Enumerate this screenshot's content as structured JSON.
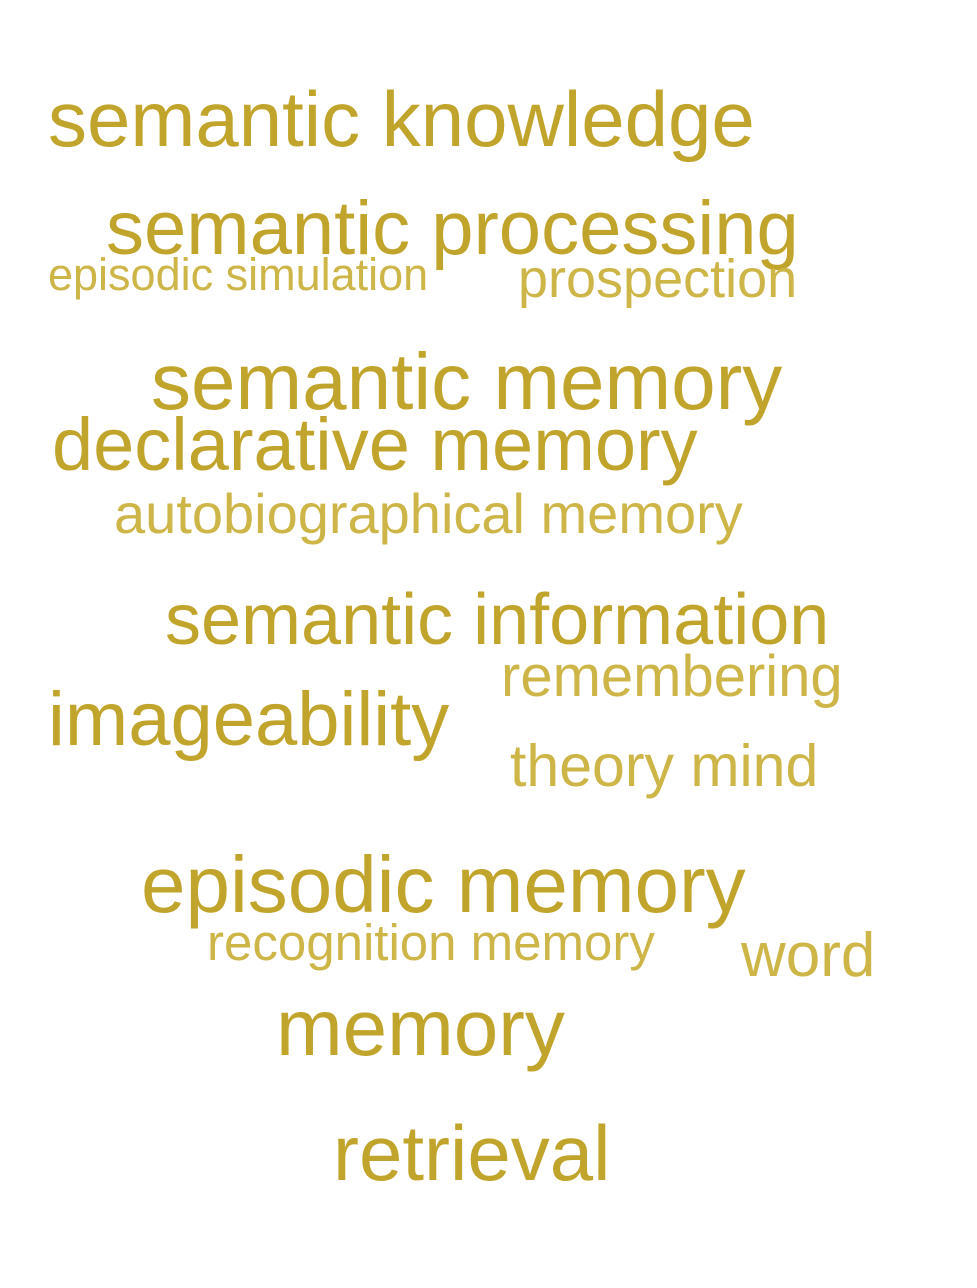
{
  "words": [
    {
      "text": "semantic knowledge",
      "tone": "dark"
    },
    {
      "text": "semantic processing",
      "tone": "dark"
    },
    {
      "text": "episodic simulation",
      "tone": "light"
    },
    {
      "text": "prospection",
      "tone": "light"
    },
    {
      "text": "semantic memory",
      "tone": "dark"
    },
    {
      "text": "declarative memory",
      "tone": "dark"
    },
    {
      "text": "autobiographical memory",
      "tone": "light"
    },
    {
      "text": "semantic information",
      "tone": "dark"
    },
    {
      "text": "remembering",
      "tone": "light"
    },
    {
      "text": "imageability",
      "tone": "dark"
    },
    {
      "text": "theory mind",
      "tone": "light"
    },
    {
      "text": "episodic memory",
      "tone": "dark"
    },
    {
      "text": "recognition memory",
      "tone": "light"
    },
    {
      "text": "word",
      "tone": "light"
    },
    {
      "text": "memory",
      "tone": "dark"
    },
    {
      "text": "retrieval",
      "tone": "dark"
    }
  ],
  "colors": {
    "dark": "#c1a42b",
    "light": "#cdb548",
    "background": "#ffffff"
  }
}
